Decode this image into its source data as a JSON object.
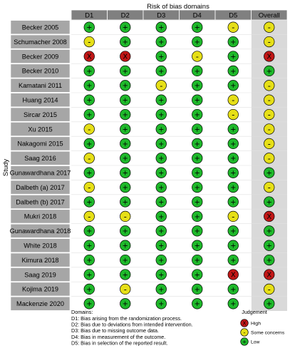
{
  "chart_data": {
    "type": "table",
    "title": "Risk of bias domains",
    "ylabel": "Study",
    "domains": [
      "D1",
      "D2",
      "D3",
      "D4",
      "D5",
      "Overall"
    ],
    "studies": [
      {
        "name": "Becker 2005",
        "ratings": [
          "low",
          "low",
          "low",
          "low",
          "some",
          "some"
        ]
      },
      {
        "name": "Schumacher 2008",
        "ratings": [
          "some",
          "low",
          "low",
          "low",
          "low",
          "some"
        ]
      },
      {
        "name": "Becker 2009",
        "ratings": [
          "high",
          "high",
          "low",
          "some",
          "low",
          "high"
        ]
      },
      {
        "name": "Becker  2010",
        "ratings": [
          "low",
          "low",
          "low",
          "low",
          "low",
          "low"
        ]
      },
      {
        "name": "Kamatani 2011",
        "ratings": [
          "low",
          "low",
          "some",
          "low",
          "low",
          "some"
        ]
      },
      {
        "name": "Huang 2014",
        "ratings": [
          "low",
          "low",
          "low",
          "low",
          "some",
          "some"
        ]
      },
      {
        "name": "Sircar 2015",
        "ratings": [
          "low",
          "low",
          "low",
          "low",
          "some",
          "some"
        ]
      },
      {
        "name": "Xu 2015",
        "ratings": [
          "some",
          "low",
          "low",
          "low",
          "low",
          "some"
        ]
      },
      {
        "name": "Nakagomi 2015",
        "ratings": [
          "low",
          "low",
          "low",
          "low",
          "low",
          "some"
        ]
      },
      {
        "name": "Saag  2016",
        "ratings": [
          "some",
          "low",
          "low",
          "low",
          "low",
          "some"
        ]
      },
      {
        "name": "Gunawardhana 2017",
        "ratings": [
          "low",
          "low",
          "low",
          "low",
          "low",
          "low"
        ]
      },
      {
        "name": "Dalbeth (a) 2017",
        "ratings": [
          "some",
          "low",
          "low",
          "low",
          "low",
          "some"
        ]
      },
      {
        "name": "Dalbeth (b) 2017",
        "ratings": [
          "low",
          "low",
          "low",
          "low",
          "low",
          "low"
        ]
      },
      {
        "name": "Mukri 2018",
        "ratings": [
          "some",
          "some",
          "low",
          "low",
          "some",
          "high"
        ]
      },
      {
        "name": "Gunawardhana 2018",
        "ratings": [
          "low",
          "low",
          "low",
          "low",
          "low",
          "low"
        ]
      },
      {
        "name": "White 2018",
        "ratings": [
          "low",
          "low",
          "low",
          "low",
          "low",
          "low"
        ]
      },
      {
        "name": "Kimura  2018",
        "ratings": [
          "low",
          "low",
          "low",
          "low",
          "low",
          "low"
        ]
      },
      {
        "name": "Saag  2019",
        "ratings": [
          "low",
          "low",
          "low",
          "low",
          "high",
          "high"
        ]
      },
      {
        "name": "Kojima 2019",
        "ratings": [
          "low",
          "some",
          "low",
          "low",
          "low",
          "some"
        ]
      },
      {
        "name": "Mackenzie 2020",
        "ratings": [
          "low",
          "low",
          "low",
          "low",
          "low",
          "low"
        ]
      }
    ],
    "symbols": {
      "low": "+",
      "some": "-",
      "high": "X"
    },
    "colors": {
      "low": "#1eb82a",
      "some": "#e6df17",
      "high": "#c11717",
      "header": "#808080",
      "study_bg": "#a6a6a6",
      "overall_bg": "#d9d9d9"
    },
    "footnote": {
      "heading": "Domains:",
      "lines": [
        "D1: Bias arising from the randomization process.",
        "D2: Bias due to deviations from intended intervention.",
        "D3: Bias due to missing outcome data.",
        "D4: Bias in measurement of the outcome.",
        "D5: Bias in selection of the reported result."
      ]
    },
    "legend": {
      "title": "Judgement",
      "items": [
        {
          "key": "high",
          "label": "High"
        },
        {
          "key": "some",
          "label": "Some concerns"
        },
        {
          "key": "low",
          "label": "Low"
        }
      ]
    }
  }
}
